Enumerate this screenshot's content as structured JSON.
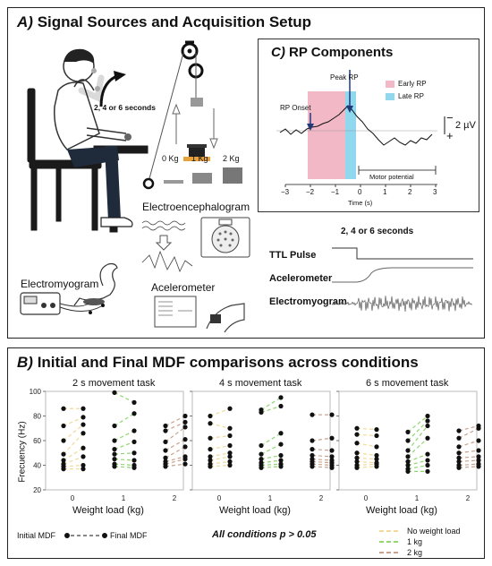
{
  "panel_a": {
    "letter": "A)",
    "title": "Signal Sources and Acquisition Setup",
    "arc_label": "2, 4 or 6 seconds",
    "weights": [
      "0 Kg",
      "1 Kg",
      "2 Kg"
    ],
    "eeg_label": "Electroencephalogram",
    "emg_label": "Electromyogram",
    "acc_label": "Acelerometer",
    "trace_title": "2, 4 or 6 seconds",
    "traces": [
      "TTL Pulse",
      "Acelerometer",
      "Electromyogram"
    ]
  },
  "panel_c": {
    "letter": "C)",
    "title": "RP Components",
    "peak_label": "Peak RP",
    "onset_label": "RP Onset",
    "legend": [
      {
        "label": "Early RP",
        "color": "#f2b8c6"
      },
      {
        "label": "Late RP",
        "color": "#8fd8ee"
      }
    ],
    "scale_minus": "−",
    "scale_plus": "+",
    "scale_value": "2 µV",
    "motor_label": "Motor potential",
    "xticks": [
      "−3",
      "−2",
      "−1",
      "0",
      "1",
      "2",
      "3"
    ],
    "xlabel": "Time (s)"
  },
  "panel_b": {
    "letter": "B)",
    "title": "Initial and Final MDF comparisons across conditions",
    "subplots": [
      "2 s movement task",
      "4 s movement task",
      "6 s movement task"
    ],
    "ylabel": "Frecuency (Hz)",
    "yticks": [
      "20",
      "40",
      "60",
      "80",
      "100"
    ],
    "xticks": [
      "0",
      "1",
      "2"
    ],
    "xlabel": "Weight load (kg)",
    "legend_initial": "Initial MDF",
    "legend_final": "Final MDF",
    "stat_text": "All conditions p > 0.05",
    "color_legend": [
      {
        "label": "No weight load",
        "color": "#f3d99a"
      },
      {
        "label": "1 kg",
        "color": "#8fd66f"
      },
      {
        "label": "2 kg",
        "color": "#c9a38f"
      }
    ]
  },
  "chart_data": [
    {
      "type": "scatter",
      "title": "2 s movement task",
      "xlabel": "Weight load (kg)",
      "ylabel": "Frecuency (Hz)",
      "ylim": [
        20,
        100
      ],
      "categories": [
        "0",
        "1",
        "2"
      ],
      "series": [
        {
          "name": "No weight load",
          "initial": [
            86,
            72,
            60,
            49,
            44,
            41,
            39,
            37
          ],
          "final": [
            86,
            79,
            73,
            66,
            54,
            47,
            40,
            37
          ]
        },
        {
          "name": "1 kg",
          "initial": [
            99,
            72,
            60,
            53,
            49,
            45,
            41,
            39
          ],
          "final": [
            91,
            82,
            68,
            59,
            50,
            44,
            40,
            38
          ]
        },
        {
          "name": "2 kg",
          "initial": [
            72,
            68,
            59,
            52,
            46,
            43,
            41,
            39
          ],
          "final": [
            80,
            75,
            71,
            61,
            55,
            47,
            45,
            41
          ]
        }
      ]
    },
    {
      "type": "scatter",
      "title": "4 s movement task",
      "xlabel": "Weight load (kg)",
      "ylabel": "Frecuency (Hz)",
      "ylim": [
        20,
        100
      ],
      "categories": [
        "0",
        "1",
        "2"
      ],
      "series": [
        {
          "name": "No weight load",
          "initial": [
            80,
            74,
            62,
            53,
            47,
            44,
            41,
            39
          ],
          "final": [
            86,
            70,
            64,
            56,
            50,
            47,
            43,
            40
          ]
        },
        {
          "name": "1 kg",
          "initial": [
            85,
            83,
            56,
            49,
            45,
            42,
            40,
            38
          ],
          "final": [
            95,
            88,
            66,
            57,
            48,
            44,
            41,
            39
          ]
        },
        {
          "name": "2 kg",
          "initial": [
            81,
            60,
            53,
            48,
            45,
            43,
            41,
            39
          ],
          "final": [
            81,
            62,
            52,
            47,
            44,
            42,
            40,
            38
          ]
        }
      ]
    },
    {
      "type": "scatter",
      "title": "6 s movement task",
      "xlabel": "Weight load (kg)",
      "ylabel": "Frecuency (Hz)",
      "ylim": [
        20,
        100
      ],
      "categories": [
        "0",
        "1",
        "2"
      ],
      "series": [
        {
          "name": "No weight load",
          "initial": [
            70,
            65,
            58,
            50,
            46,
            43,
            40,
            38
          ],
          "final": [
            69,
            64,
            55,
            48,
            45,
            42,
            41,
            39
          ]
        },
        {
          "name": "1 kg",
          "initial": [
            67,
            60,
            52,
            47,
            43,
            40,
            37,
            35
          ],
          "final": [
            80,
            76,
            72,
            62,
            49,
            44,
            40,
            35
          ]
        },
        {
          "name": "2 kg",
          "initial": [
            68,
            62,
            55,
            50,
            46,
            43,
            40,
            38
          ],
          "final": [
            72,
            70,
            60,
            52,
            47,
            44,
            41,
            39
          ]
        }
      ]
    }
  ]
}
